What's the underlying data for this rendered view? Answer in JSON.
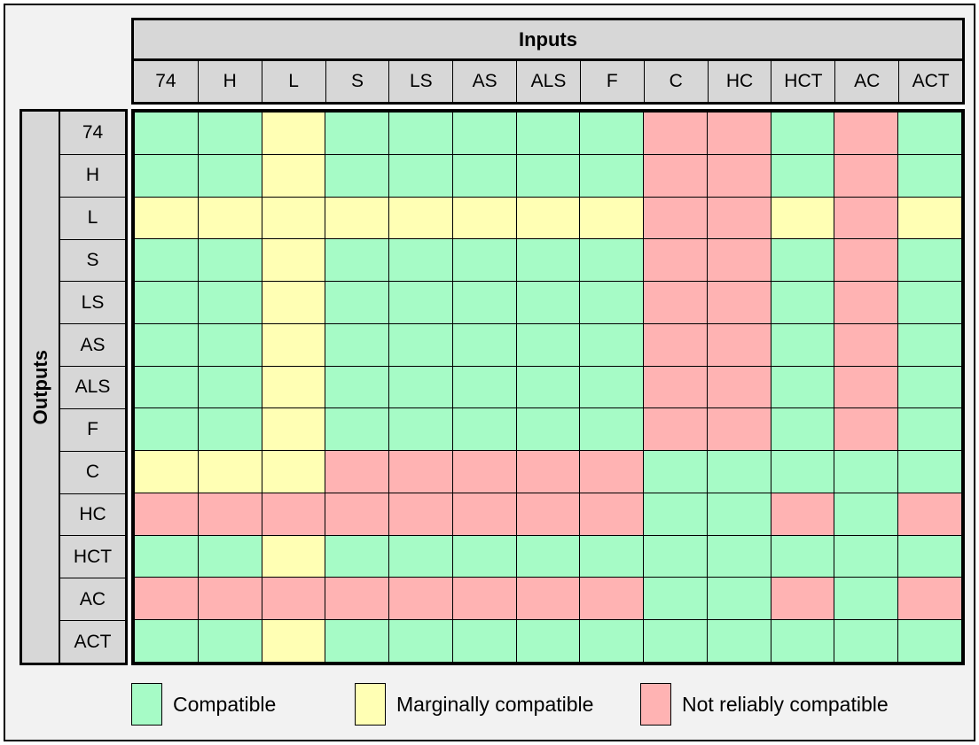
{
  "matrix": {
    "inputs_label": "Inputs",
    "outputs_label": "Outputs",
    "families": [
      "74",
      "H",
      "L",
      "S",
      "LS",
      "AS",
      "ALS",
      "F",
      "C",
      "HC",
      "HCT",
      "AC",
      "ACT"
    ],
    "cells": [
      "GGYGGGGGRRGRG",
      "GGYGGGGGRRGRG",
      "YYYYYYYYRRYRY",
      "GGYGGGGGRRGRG",
      "GGYGGGGGRRGRG",
      "GGYGGGGGRRGRG",
      "GGYGGGGGRRGRG",
      "GGYGGGGGRRGRG",
      "YYYRRRRRGGGGG",
      "RRRRRRRRGGRGR",
      "GGYGGGGGGGGGG",
      "RRRRRRRRGGRGR",
      "GGYGGGGGGGGGG"
    ]
  },
  "legend": {
    "items": [
      {
        "code": "G",
        "label": "Compatible",
        "color": "#A6FBC6"
      },
      {
        "code": "Y",
        "label": "Marginally compatible",
        "color": "#FFFFB4"
      },
      {
        "code": "R",
        "label": "Not reliably compatible",
        "color": "#FFB3B3"
      }
    ]
  },
  "colors": {
    "header_background": "#D7D7D7",
    "page_background": "#F2F2F2",
    "grid_lines": "#000000"
  },
  "chart_data": {
    "type": "heatmap",
    "title": "",
    "x_axis_label": "Inputs",
    "y_axis_label": "Outputs",
    "x_categories": [
      "74",
      "H",
      "L",
      "S",
      "LS",
      "AS",
      "ALS",
      "F",
      "C",
      "HC",
      "HCT",
      "AC",
      "ACT"
    ],
    "y_categories": [
      "74",
      "H",
      "L",
      "S",
      "LS",
      "AS",
      "ALS",
      "F",
      "C",
      "HC",
      "HCT",
      "AC",
      "ACT"
    ],
    "values": [
      "GGYGGGGGRRGRG",
      "GGYGGGGGRRGRG",
      "YYYYYYYYRRYRY",
      "GGYGGGGGRRGRG",
      "GGYGGGGGRRGRG",
      "GGYGGGGGRRGRG",
      "GGYGGGGGRRGRG",
      "GGYGGGGGRRGRG",
      "YYYRRRRRGGGGG",
      "RRRRRRRRGGRGR",
      "GGYGGGGGGGGGG",
      "RRRRRRRRGGRGR",
      "GGYGGGGGGGGGG"
    ],
    "code_legend": {
      "G": "Compatible",
      "Y": "Marginally compatible",
      "R": "Not reliably compatible"
    },
    "legend_position": "bottom",
    "grid": true
  }
}
